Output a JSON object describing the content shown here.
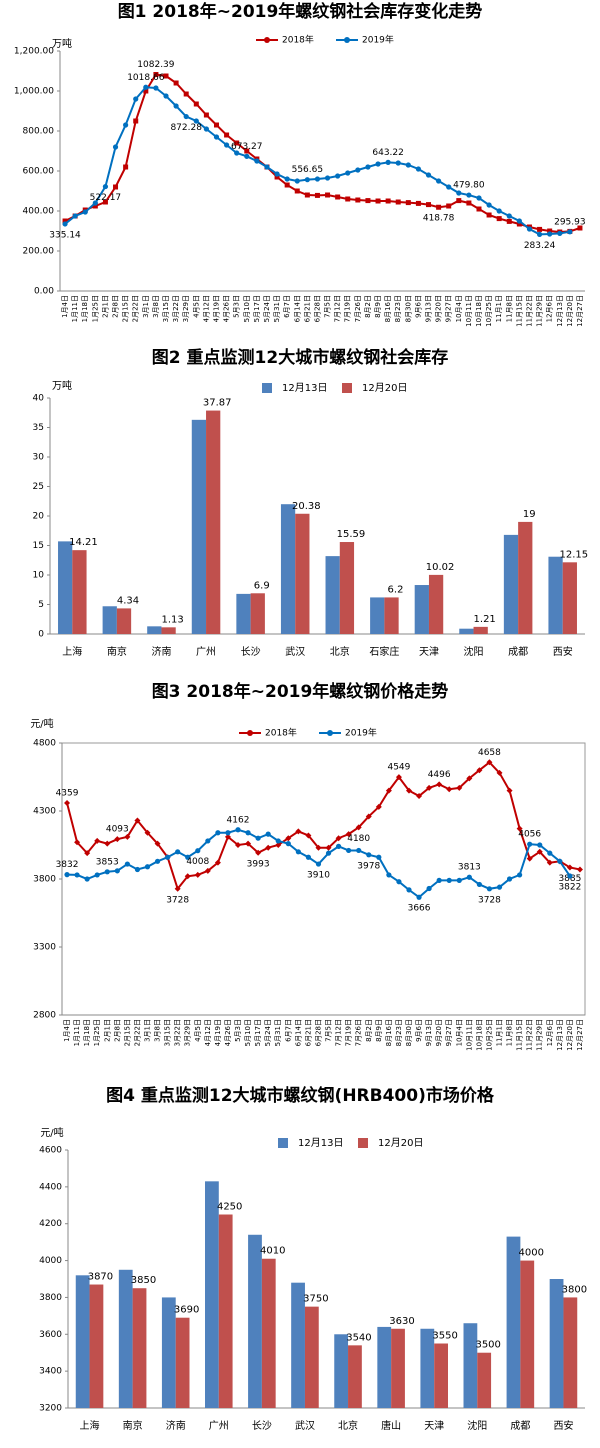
{
  "chart_data": [
    {
      "type": "line",
      "title": "图1 2018年~2019年螺纹钢社会库存变化走势",
      "y_label": "万吨",
      "categories": [
        "1月4日",
        "1月11日",
        "1月18日",
        "1月25日",
        "2月1日",
        "2月8日",
        "2月15日",
        "2月22日",
        "3月1日",
        "3月8日",
        "3月15日",
        "3月22日",
        "3月29日",
        "4月5日",
        "4月12日",
        "4月19日",
        "4月26日",
        "5月3日",
        "5月10日",
        "5月17日",
        "5月24日",
        "5月31日",
        "6月7日",
        "6月14日",
        "6月21日",
        "6月28日",
        "7月5日",
        "7月12日",
        "7月19日",
        "7月26日",
        "8月2日",
        "8月9日",
        "8月16日",
        "8月23日",
        "8月30日",
        "9月6日",
        "9月13日",
        "9月20日",
        "9月27日",
        "10月4日",
        "10月11日",
        "10月18日",
        "10月25日",
        "11月1日",
        "11月8日",
        "11月15日",
        "11月22日",
        "11月29日",
        "12月6日",
        "12月13日",
        "12月20日",
        "12月27日"
      ],
      "series": [
        {
          "name": "2018年",
          "color": "#c00000",
          "marker": "square",
          "values": [
            350,
            375,
            405,
            425,
            445,
            520,
            620,
            850,
            1000,
            1082.39,
            1075,
            1040,
            985,
            935,
            880,
            830,
            780,
            740,
            700,
            660,
            620,
            570,
            530,
            500,
            480,
            478,
            480,
            470,
            460,
            455,
            452,
            450,
            450,
            445,
            442,
            438,
            432,
            418.78,
            425,
            452,
            440,
            410,
            380,
            362,
            348,
            335,
            320,
            308,
            300,
            295,
            298,
            315
          ],
          "value_labels": [
            null,
            null,
            null,
            null,
            null,
            null,
            null,
            null,
            null,
            "1082.39",
            null,
            null,
            null,
            null,
            null,
            null,
            null,
            null,
            null,
            null,
            null,
            null,
            null,
            null,
            null,
            null,
            null,
            null,
            null,
            null,
            null,
            null,
            null,
            null,
            null,
            null,
            null,
            "418.78",
            null,
            null,
            null,
            null,
            null,
            null,
            null,
            null,
            null,
            null,
            null,
            null,
            null,
            null
          ]
        },
        {
          "name": "2019年",
          "color": "#0070c0",
          "marker": "circle",
          "values": [
            335.14,
            375,
            395,
            440,
            522.17,
            720,
            830,
            960,
            1018.66,
            1015,
            975,
            925,
            872.28,
            850,
            810,
            770,
            730,
            690,
            673.27,
            650,
            620,
            585,
            560,
            550,
            556.65,
            560,
            565,
            575,
            590,
            605,
            620,
            635,
            643.22,
            640,
            630,
            610,
            580,
            550,
            520,
            490,
            479.8,
            465,
            430,
            400,
            375,
            350,
            310,
            283.24,
            285,
            288,
            295.93,
            null
          ],
          "value_labels": [
            "335.14",
            null,
            null,
            null,
            "522.17",
            null,
            null,
            null,
            "1018.66",
            null,
            null,
            null,
            "872.28",
            null,
            null,
            null,
            null,
            null,
            "673.27",
            null,
            null,
            null,
            null,
            null,
            "556.65",
            null,
            null,
            null,
            null,
            null,
            null,
            null,
            "643.22",
            null,
            null,
            null,
            null,
            null,
            null,
            null,
            "479.80",
            null,
            null,
            null,
            null,
            null,
            null,
            "283.24",
            null,
            null,
            "295.93",
            null
          ]
        }
      ],
      "ylim": [
        0,
        1200
      ],
      "yticks": [
        {
          "value": 0,
          "label": "0.00"
        },
        {
          "value": 200,
          "label": "200.00"
        },
        {
          "value": 400,
          "label": "400.00"
        },
        {
          "value": 600,
          "label": "600.00"
        },
        {
          "value": 800,
          "label": "800.00"
        },
        {
          "value": 1000,
          "label": "1,000.00"
        },
        {
          "value": 1200,
          "label": "1,200.00"
        }
      ],
      "grid": false
    },
    {
      "type": "bar",
      "title": "图2 重点监测12大城市螺纹钢社会库存",
      "y_label": "万吨",
      "categories": [
        "上海",
        "南京",
        "济南",
        "广州",
        "长沙",
        "武汉",
        "北京",
        "石家庄",
        "天津",
        "沈阳",
        "成都",
        "西安"
      ],
      "series": [
        {
          "name": "12月13日",
          "color": "#4f81bd",
          "values": [
            15.7,
            4.7,
            1.3,
            36.3,
            6.8,
            22.0,
            13.2,
            6.2,
            8.3,
            0.9,
            16.8,
            13.1
          ]
        },
        {
          "name": "12月20日",
          "color": "#c0504d",
          "values": [
            14.21,
            4.34,
            1.13,
            37.87,
            6.9,
            20.38,
            15.59,
            6.2,
            10.02,
            1.21,
            19,
            12.15
          ],
          "show_labels": true
        }
      ],
      "ylim": [
        0,
        40
      ],
      "yticks": [
        0,
        5,
        10,
        15,
        20,
        25,
        30,
        35,
        40
      ],
      "grid": false
    },
    {
      "type": "line",
      "title": "图3 2018年~2019年螺纹钢价格走势",
      "y_label": "元/吨",
      "categories": [
        "1月4日",
        "1月11日",
        "1月18日",
        "1月25日",
        "2月1日",
        "2月8日",
        "2月15日",
        "2月22日",
        "3月1日",
        "3月8日",
        "3月15日",
        "3月22日",
        "3月29日",
        "4月5日",
        "4月12日",
        "4月19日",
        "4月26日",
        "5月3日",
        "5月10日",
        "5月17日",
        "5月24日",
        "5月31日",
        "6月7日",
        "6月14日",
        "6月21日",
        "6月28日",
        "7月5日",
        "7月12日",
        "7月19日",
        "7月26日",
        "8月2日",
        "8月9日",
        "8月16日",
        "8月23日",
        "8月30日",
        "9月6日",
        "9月13日",
        "9月20日",
        "9月27日",
        "10月4日",
        "10月11日",
        "10月18日",
        "10月25日",
        "11月1日",
        "11月8日",
        "11月15日",
        "11月22日",
        "11月29日",
        "12月6日",
        "12月13日",
        "12月20日",
        "12月27日"
      ],
      "series": [
        {
          "name": "2018年",
          "color": "#c00000",
          "marker": "diamond",
          "values": [
            4359,
            4070,
            3990,
            4080,
            4060,
            4093,
            4110,
            4230,
            4140,
            4060,
            3960,
            3728,
            3820,
            3830,
            3860,
            3920,
            4110,
            4050,
            4060,
            3993,
            4030,
            4050,
            4100,
            4150,
            4120,
            4030,
            4030,
            4100,
            4130,
            4180,
            4260,
            4330,
            4450,
            4549,
            4450,
            4410,
            4470,
            4496,
            4460,
            4470,
            4540,
            4600,
            4658,
            4580,
            4450,
            4170,
            3950,
            4000,
            3920,
            3930,
            3885,
            3870
          ],
          "value_labels": [
            "4359",
            null,
            null,
            null,
            null,
            "4093",
            null,
            null,
            null,
            null,
            null,
            "3728",
            null,
            null,
            null,
            null,
            null,
            null,
            null,
            "3993",
            null,
            null,
            null,
            null,
            null,
            null,
            null,
            null,
            null,
            "4180",
            null,
            null,
            null,
            "4549",
            null,
            null,
            null,
            "4496",
            null,
            null,
            null,
            null,
            "4658",
            null,
            null,
            null,
            null,
            null,
            null,
            null,
            "3885",
            null
          ]
        },
        {
          "name": "2019年",
          "color": "#0070c0",
          "marker": "circle",
          "values": [
            3832,
            3830,
            3800,
            3830,
            3853,
            3860,
            3910,
            3870,
            3890,
            3930,
            3960,
            4000,
            3960,
            4008,
            4080,
            4140,
            4140,
            4162,
            4140,
            4100,
            4130,
            4080,
            4060,
            4000,
            3960,
            3910,
            3990,
            4040,
            4010,
            4010,
            3978,
            3960,
            3830,
            3780,
            3720,
            3666,
            3730,
            3790,
            3790,
            3790,
            3813,
            3760,
            3728,
            3740,
            3800,
            3830,
            4056,
            4050,
            3990,
            3930,
            3822,
            null
          ],
          "value_labels": [
            "3832",
            null,
            null,
            null,
            "3853",
            null,
            null,
            null,
            null,
            null,
            null,
            null,
            null,
            "4008",
            null,
            null,
            null,
            "4162",
            null,
            null,
            null,
            null,
            null,
            null,
            null,
            "3910",
            null,
            null,
            null,
            null,
            "3978",
            null,
            null,
            null,
            null,
            "3666",
            null,
            null,
            null,
            null,
            "3813",
            null,
            "3728",
            null,
            null,
            null,
            "4056",
            null,
            null,
            null,
            "3822",
            null
          ]
        }
      ],
      "ylim": [
        2800,
        4800
      ],
      "yticks": [
        2800,
        3300,
        3800,
        4300,
        4800
      ],
      "grid": false
    },
    {
      "type": "bar",
      "title": "图4 重点监测12大城市螺纹钢(HRB400)市场价格",
      "y_label": "元/吨",
      "categories": [
        "上海",
        "南京",
        "济南",
        "广州",
        "长沙",
        "武汉",
        "北京",
        "唐山",
        "天津",
        "沈阳",
        "成都",
        "西安"
      ],
      "series": [
        {
          "name": "12月13日",
          "color": "#4f81bd",
          "values": [
            3920,
            3950,
            3800,
            4430,
            4140,
            3880,
            3600,
            3640,
            3630,
            3660,
            4130,
            3900
          ]
        },
        {
          "name": "12月20日",
          "color": "#c0504d",
          "values": [
            3870,
            3850,
            3690,
            4250,
            4010,
            3750,
            3540,
            3630,
            3550,
            3500,
            4000,
            3800
          ],
          "show_labels": true
        }
      ],
      "ylim": [
        3200,
        4600
      ],
      "yticks": [
        3200,
        3400,
        3600,
        3800,
        4000,
        4200,
        4400,
        4600
      ],
      "grid": false
    }
  ]
}
